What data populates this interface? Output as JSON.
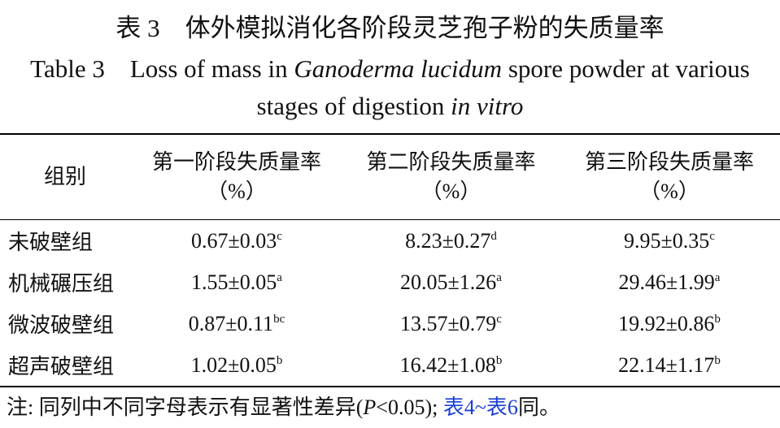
{
  "title_cn": "表 3　体外模拟消化各阶段灵芝孢子粉的失质量率",
  "title_en": [
    "Table 3　Loss of mass in ",
    "Ganoderma lucidum",
    " spore powder at various stages of digestion ",
    "in vitro"
  ],
  "table": {
    "header": [
      {
        "label": "组别"
      },
      {
        "label": "第一阶段失质量率",
        "unit": "（%）"
      },
      {
        "label": "第二阶段失质量率",
        "unit": "（%）"
      },
      {
        "label": "第三阶段失质量率",
        "unit": "（%）"
      }
    ],
    "rows": [
      {
        "group": "未破壁组",
        "cells": [
          {
            "value": "0.67±0.03",
            "letter": "c"
          },
          {
            "value": "8.23±0.27",
            "letter": "d"
          },
          {
            "value": "9.95±0.35",
            "letter": "c"
          }
        ]
      },
      {
        "group": "机械碾压组",
        "cells": [
          {
            "value": "1.55±0.05",
            "letter": "a"
          },
          {
            "value": "20.05±1.26",
            "letter": "a"
          },
          {
            "value": "29.46±1.99",
            "letter": "a"
          }
        ]
      },
      {
        "group": "微波破壁组",
        "cells": [
          {
            "value": "0.87±0.11",
            "letter": "bc"
          },
          {
            "value": "13.57±0.79",
            "letter": "c"
          },
          {
            "value": "19.92±0.86",
            "letter": "b"
          }
        ]
      },
      {
        "group": "超声破壁组",
        "cells": [
          {
            "value": "1.02±0.05",
            "letter": "b"
          },
          {
            "value": "16.42±1.08",
            "letter": "b"
          },
          {
            "value": "22.14±1.17",
            "letter": "b"
          }
        ]
      }
    ]
  },
  "note": [
    "注: 同列中不同字母表示有显著性差异(",
    "P",
    "<0.05); ",
    "表4",
    "~",
    "表6",
    "同。"
  ]
}
